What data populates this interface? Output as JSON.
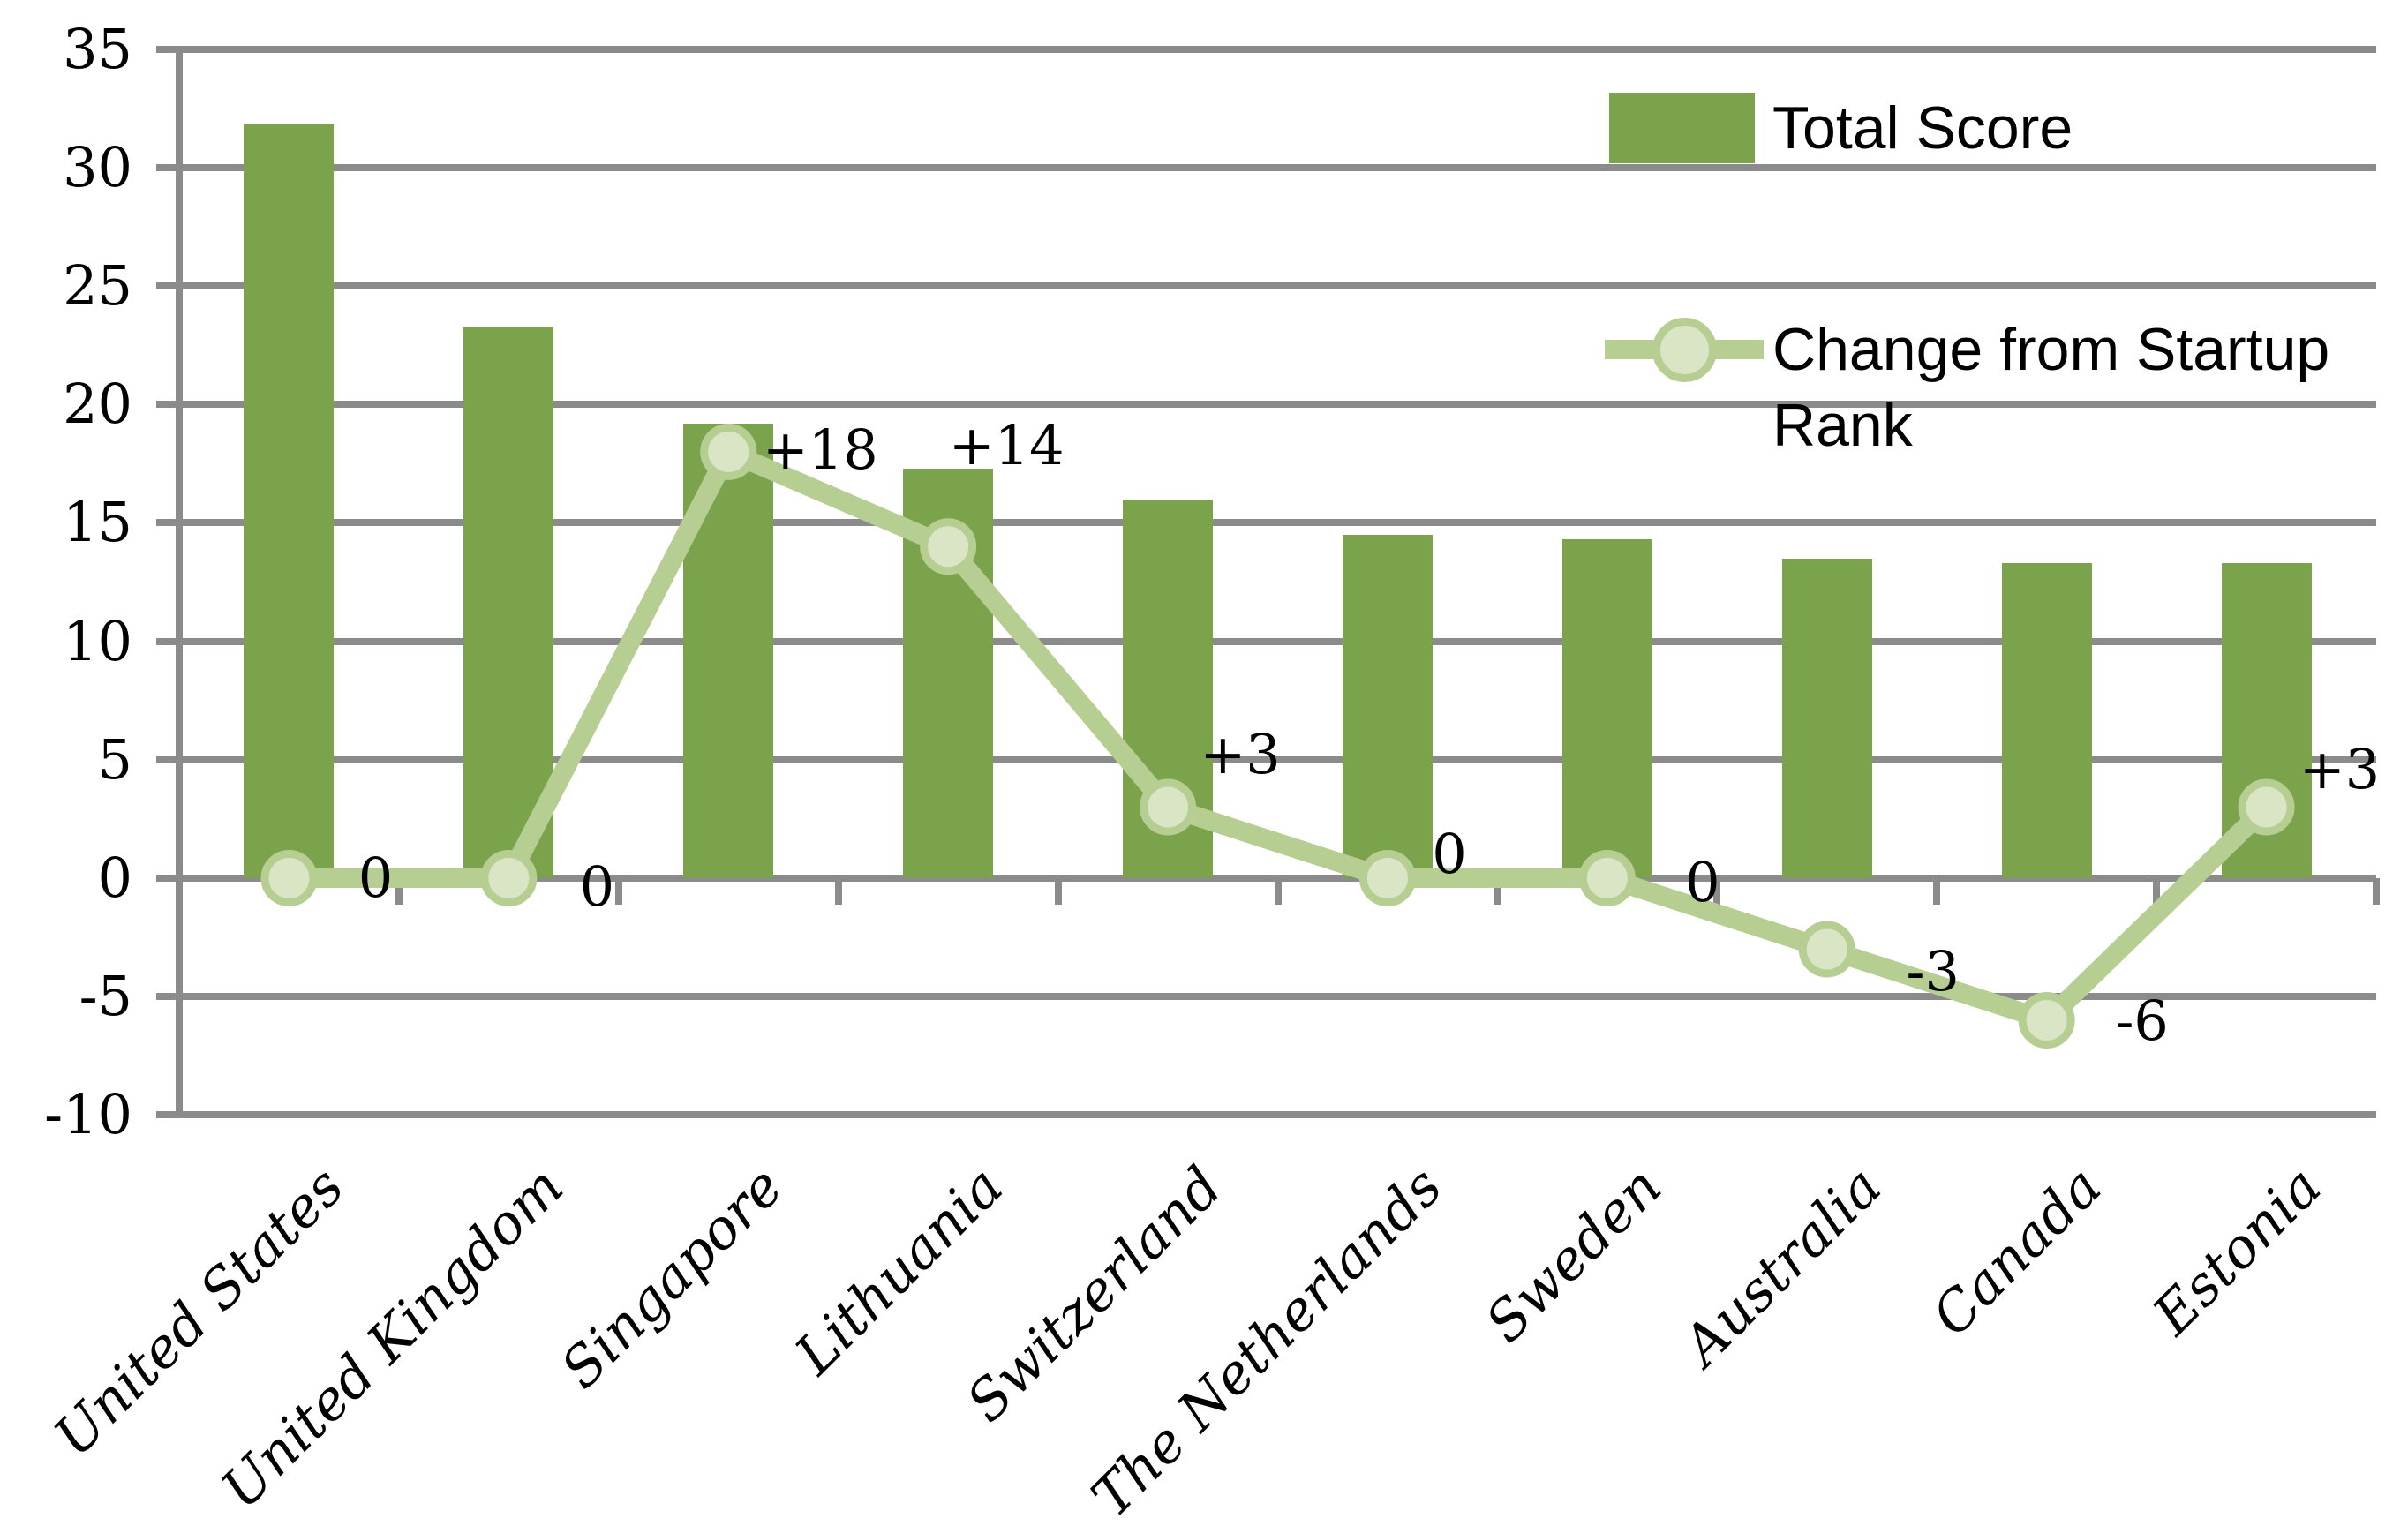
{
  "chart_data": {
    "type": "bar+line",
    "title": "",
    "categories": [
      "United States",
      "United Kingdom",
      "Singapore",
      "Lithuania",
      "Switzerland",
      "The Netherlands",
      "Sweden",
      "Australia",
      "Canada",
      "Estonia"
    ],
    "series": [
      {
        "name": "Total Score",
        "type": "bar",
        "values": [
          31.8,
          23.3,
          19.2,
          17.3,
          16.0,
          14.5,
          14.3,
          13.5,
          13.3,
          13.3
        ]
      },
      {
        "name": "Change from Startup Rank",
        "type": "line",
        "values": [
          0,
          0,
          18,
          14,
          3,
          0,
          0,
          -3,
          -6,
          3
        ],
        "point_labels": [
          "0",
          "0",
          "+18",
          "+14",
          "+3",
          "0",
          "0",
          "-3",
          "-6",
          "+3"
        ]
      }
    ],
    "y_axis": {
      "min": -10,
      "max": 35,
      "step": 5,
      "tick_labels": [
        "35",
        "30",
        "25",
        "20",
        "15",
        "10",
        "5",
        "0",
        "-5",
        "-10"
      ]
    },
    "x_axis": {
      "label_rotation_deg": -45
    },
    "grid": true,
    "legend_position": "top-right",
    "colors": {
      "bar": "#7AA34C",
      "line": "#B7CE93",
      "marker_fill": "#D9E5C4",
      "gridline": "#8B8B8B",
      "text": "#000000"
    }
  }
}
